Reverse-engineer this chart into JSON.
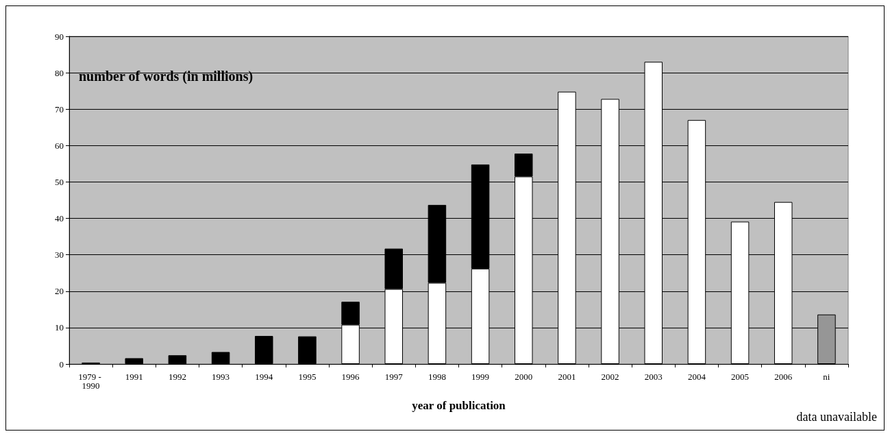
{
  "chart_data": {
    "type": "bar",
    "stacked": true,
    "ylabel": "number of words (in millions)",
    "xlabel": "year of publication",
    "annotations": [
      "data unavailable"
    ],
    "categories": [
      "1979 - 1990",
      "1991",
      "1992",
      "1993",
      "1994",
      "1995",
      "1996",
      "1997",
      "1998",
      "1999",
      "2000",
      "2001",
      "2002",
      "2003",
      "2004",
      "2005",
      "2006",
      "ni"
    ],
    "series": [
      {
        "color": "#ffffff",
        "values": [
          null,
          null,
          null,
          null,
          null,
          null,
          10.8,
          20.6,
          22.3,
          26.2,
          51.5,
          74.8,
          72.8,
          83,
          67,
          39.1,
          44.5,
          null
        ]
      },
      {
        "color": "#000000",
        "values": [
          0.4,
          1.6,
          2.4,
          3.3,
          7.7,
          7.6,
          6.3,
          11.1,
          21.4,
          28.6,
          6.3,
          null,
          null,
          null,
          null,
          null,
          null,
          null
        ]
      },
      {
        "color": "#969696",
        "values": [
          null,
          null,
          null,
          null,
          null,
          null,
          null,
          null,
          null,
          null,
          null,
          null,
          null,
          null,
          null,
          null,
          null,
          13.6
        ]
      }
    ],
    "ylim": [
      0,
      90
    ],
    "yticks": [
      0,
      10,
      20,
      30,
      40,
      50,
      60,
      70,
      80,
      90
    ],
    "grid": "y"
  }
}
